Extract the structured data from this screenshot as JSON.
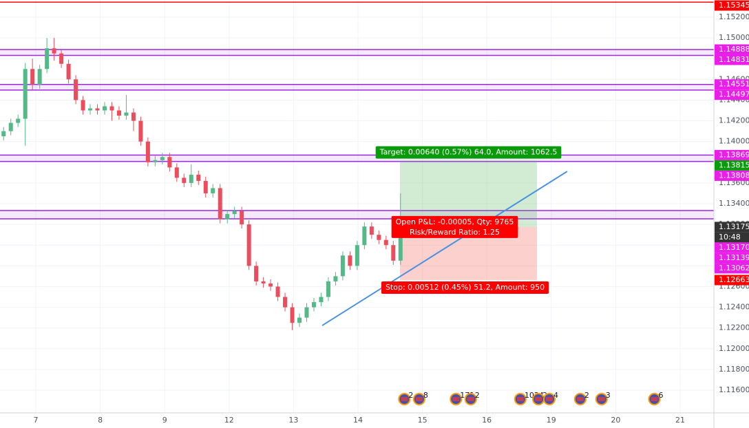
{
  "chart_data": {
    "type": "candlestick",
    "xlim": [
      -0.556,
      10.524
    ],
    "ylim": [
      1.11381,
      1.15366
    ],
    "grid": true,
    "up_color": "#53b987",
    "down_color": "#eb4d5c",
    "xticks": [
      {
        "value": 0,
        "label": "7"
      },
      {
        "value": 1,
        "label": "8"
      },
      {
        "value": 2,
        "label": "9"
      },
      {
        "value": 3,
        "label": "12"
      },
      {
        "value": 4,
        "label": "13"
      },
      {
        "value": 5,
        "label": "14"
      },
      {
        "value": 6,
        "label": "15"
      },
      {
        "value": 7,
        "label": "16"
      },
      {
        "value": 8,
        "label": "19"
      },
      {
        "value": 9,
        "label": "20"
      },
      {
        "value": 10,
        "label": "21"
      }
    ],
    "yticks": [
      {
        "value": 1.152,
        "label": "1.15200"
      },
      {
        "value": 1.15,
        "label": "1.15000"
      },
      {
        "value": 1.148,
        "label": "1.14800"
      },
      {
        "value": 1.146,
        "label": "1.14600"
      },
      {
        "value": 1.144,
        "label": "1.14400"
      },
      {
        "value": 1.142,
        "label": "1.14200"
      },
      {
        "value": 1.14,
        "label": "1.14000"
      },
      {
        "value": 1.138,
        "label": "1.13800"
      },
      {
        "value": 1.136,
        "label": "1.13600"
      },
      {
        "value": 1.134,
        "label": "1.13400"
      },
      {
        "value": 1.132,
        "label": "1.13200"
      },
      {
        "value": 1.13,
        "label": "1.13000"
      },
      {
        "value": 1.128,
        "label": "1.12800"
      },
      {
        "value": 1.126,
        "label": "1.12600"
      },
      {
        "value": 1.124,
        "label": "1.12400"
      },
      {
        "value": 1.122,
        "label": "1.12200"
      },
      {
        "value": 1.12,
        "label": "1.12000"
      },
      {
        "value": 1.118,
        "label": "1.11800"
      },
      {
        "value": 1.116,
        "label": "1.11600"
      }
    ],
    "candles": {
      "x": [
        -0.5,
        -0.388,
        -0.276,
        -0.164,
        -0.052,
        0.06,
        0.172,
        0.284,
        0.396,
        0.508,
        0.62,
        0.732,
        0.844,
        0.956,
        1.068,
        1.18,
        1.292,
        1.404,
        1.516,
        1.628,
        1.74,
        1.852,
        1.964,
        2.076,
        2.188,
        2.3,
        2.412,
        2.524,
        2.636,
        2.748,
        2.86,
        2.972,
        3.084,
        3.196,
        3.308,
        3.42,
        3.532,
        3.644,
        3.756,
        3.868,
        3.98,
        4.092,
        4.204,
        4.316,
        4.428,
        4.54,
        4.652,
        4.764,
        4.876,
        4.988,
        5.1,
        5.212,
        5.324,
        5.436,
        5.548,
        5.66
      ],
      "open": [
        1.1405,
        1.141,
        1.1418,
        1.1422,
        1.147,
        1.1455,
        1.147,
        1.149,
        1.1485,
        1.1475,
        1.146,
        1.144,
        1.143,
        1.1432,
        1.143,
        1.1434,
        1.143,
        1.1425,
        1.1428,
        1.142,
        1.14,
        1.138,
        1.1382,
        1.1385,
        1.1375,
        1.1365,
        1.136,
        1.1368,
        1.1362,
        1.135,
        1.1355,
        1.1325,
        1.133,
        1.1333,
        1.132,
        1.128,
        1.1265,
        1.1263,
        1.126,
        1.125,
        1.124,
        1.1225,
        1.123,
        1.124,
        1.1245,
        1.125,
        1.1265,
        1.127,
        1.129,
        1.128,
        1.13,
        1.1318,
        1.131,
        1.1305,
        1.13,
        1.1285
      ],
      "high": [
        1.1414,
        1.1422,
        1.1426,
        1.1476,
        1.148,
        1.1474,
        1.15,
        1.15,
        1.1489,
        1.1479,
        1.1464,
        1.1444,
        1.1436,
        1.1436,
        1.1438,
        1.1438,
        1.1434,
        1.1445,
        1.1432,
        1.1424,
        1.1404,
        1.1386,
        1.1389,
        1.1389,
        1.1379,
        1.1369,
        1.1378,
        1.1372,
        1.1366,
        1.1359,
        1.1359,
        1.1334,
        1.1337,
        1.1337,
        1.1324,
        1.1284,
        1.1269,
        1.1267,
        1.1264,
        1.1254,
        1.1244,
        1.1234,
        1.1244,
        1.1249,
        1.1254,
        1.1269,
        1.1274,
        1.1294,
        1.1294,
        1.1304,
        1.1322,
        1.1322,
        1.1314,
        1.1309,
        1.1304,
        1.135
      ],
      "low": [
        1.1401,
        1.1406,
        1.1414,
        1.1396,
        1.145,
        1.1451,
        1.1466,
        1.1478,
        1.1471,
        1.1456,
        1.1436,
        1.1426,
        1.1426,
        1.1426,
        1.1426,
        1.142,
        1.1421,
        1.1421,
        1.141,
        1.1396,
        1.1376,
        1.1376,
        1.1378,
        1.1371,
        1.1361,
        1.1356,
        1.1356,
        1.1358,
        1.1346,
        1.1346,
        1.1321,
        1.1321,
        1.1326,
        1.1316,
        1.1276,
        1.1261,
        1.1259,
        1.1256,
        1.1246,
        1.1236,
        1.1218,
        1.1221,
        1.1226,
        1.1236,
        1.1241,
        1.1246,
        1.1261,
        1.1266,
        1.1276,
        1.1276,
        1.1296,
        1.1306,
        1.1301,
        1.1296,
        1.1281,
        1.1281
      ],
      "close": [
        1.141,
        1.1418,
        1.1422,
        1.147,
        1.1455,
        1.147,
        1.149,
        1.1485,
        1.1475,
        1.146,
        1.144,
        1.143,
        1.1432,
        1.143,
        1.1434,
        1.143,
        1.1425,
        1.1428,
        1.142,
        1.14,
        1.138,
        1.1382,
        1.1385,
        1.1375,
        1.1365,
        1.136,
        1.1368,
        1.1362,
        1.135,
        1.1355,
        1.1325,
        1.133,
        1.1333,
        1.132,
        1.128,
        1.1265,
        1.1263,
        1.126,
        1.125,
        1.124,
        1.1225,
        1.123,
        1.124,
        1.1245,
        1.125,
        1.1265,
        1.127,
        1.129,
        1.128,
        1.13,
        1.1318,
        1.131,
        1.1305,
        1.13,
        1.1285,
        1.13175
      ]
    },
    "red_line": {
      "value": 1.15345,
      "color": "#ff0000"
    },
    "zones": [
      {
        "top": 1.14888,
        "bottom": 1.14831
      },
      {
        "top": 1.14551,
        "bottom": 1.14497
      },
      {
        "top": 1.13869,
        "bottom": 1.13808
      },
      {
        "top": 1.13334,
        "bottom": 1.13254
      }
    ],
    "zone_color": "#9c27e0",
    "trend_line": {
      "x": [
        4.444,
        8.248
      ],
      "y": [
        1.12224,
        1.13712
      ],
      "color": "#4a90e2"
    },
    "position": {
      "x_start": 5.652,
      "x_end": 7.778,
      "entry": 1.13175,
      "target": 1.13815,
      "stop": 1.12663,
      "target_label": "Target: 0.00640 (0.57%) 64.0, Amount: 1062.5",
      "pnl_label": "Open P&L: -0.00005, Qty: 9765",
      "rr_label": "Risk/Reward Ratio: 1.25",
      "stop_label": "Stop: 0.00512 (0.45%) 51.2, Amount: 950"
    },
    "price_labels": [
      {
        "value": 1.15345,
        "label": "1.15345",
        "color": "#ff0000"
      },
      {
        "value": 1.14888,
        "label": "1.14888",
        "color": "#e91ee9"
      },
      {
        "value": 1.14831,
        "label": "1.14831",
        "color": "#e91ee9"
      },
      {
        "value": 1.14551,
        "label": "1.14551",
        "color": "#e91ee9"
      },
      {
        "value": 1.14497,
        "label": "1.14497",
        "color": "#e91ee9"
      },
      {
        "value": 1.13869,
        "label": "1.13869",
        "color": "#e91ee9"
      },
      {
        "value": 1.13815,
        "label": "1.13815",
        "color": "#0b9a0b"
      },
      {
        "value": 1.13808,
        "label": "1.13808",
        "color": "#e91ee9"
      },
      {
        "value": 1.13175,
        "label": "1.13175",
        "color": "#333333"
      },
      {
        "label": "10:48",
        "color": "#333333"
      },
      {
        "value": 1.1317,
        "label": "1.13170",
        "color": "#e91ee9"
      },
      {
        "value": 1.13139,
        "label": "1.13139",
        "color": "#e91ee9"
      },
      {
        "value": 1.13062,
        "label": "1.13062",
        "color": "#e91ee9"
      },
      {
        "value": 1.12663,
        "label": "1.12663",
        "color": "#ff0000"
      }
    ],
    "events": [
      {
        "x": 5.72,
        "label": "2"
      },
      {
        "x": 5.95,
        "label": "8"
      },
      {
        "x": 6.52,
        "label": "171"
      },
      {
        "x": 6.75,
        "label": "2"
      },
      {
        "x": 7.52,
        "label": "1024"
      },
      {
        "x": 7.8,
        "label": "2"
      },
      {
        "x": 7.97,
        "label": "4"
      },
      {
        "x": 8.45,
        "label": "2"
      },
      {
        "x": 8.78,
        "label": "3"
      },
      {
        "x": 9.6,
        "label": "6"
      }
    ]
  }
}
